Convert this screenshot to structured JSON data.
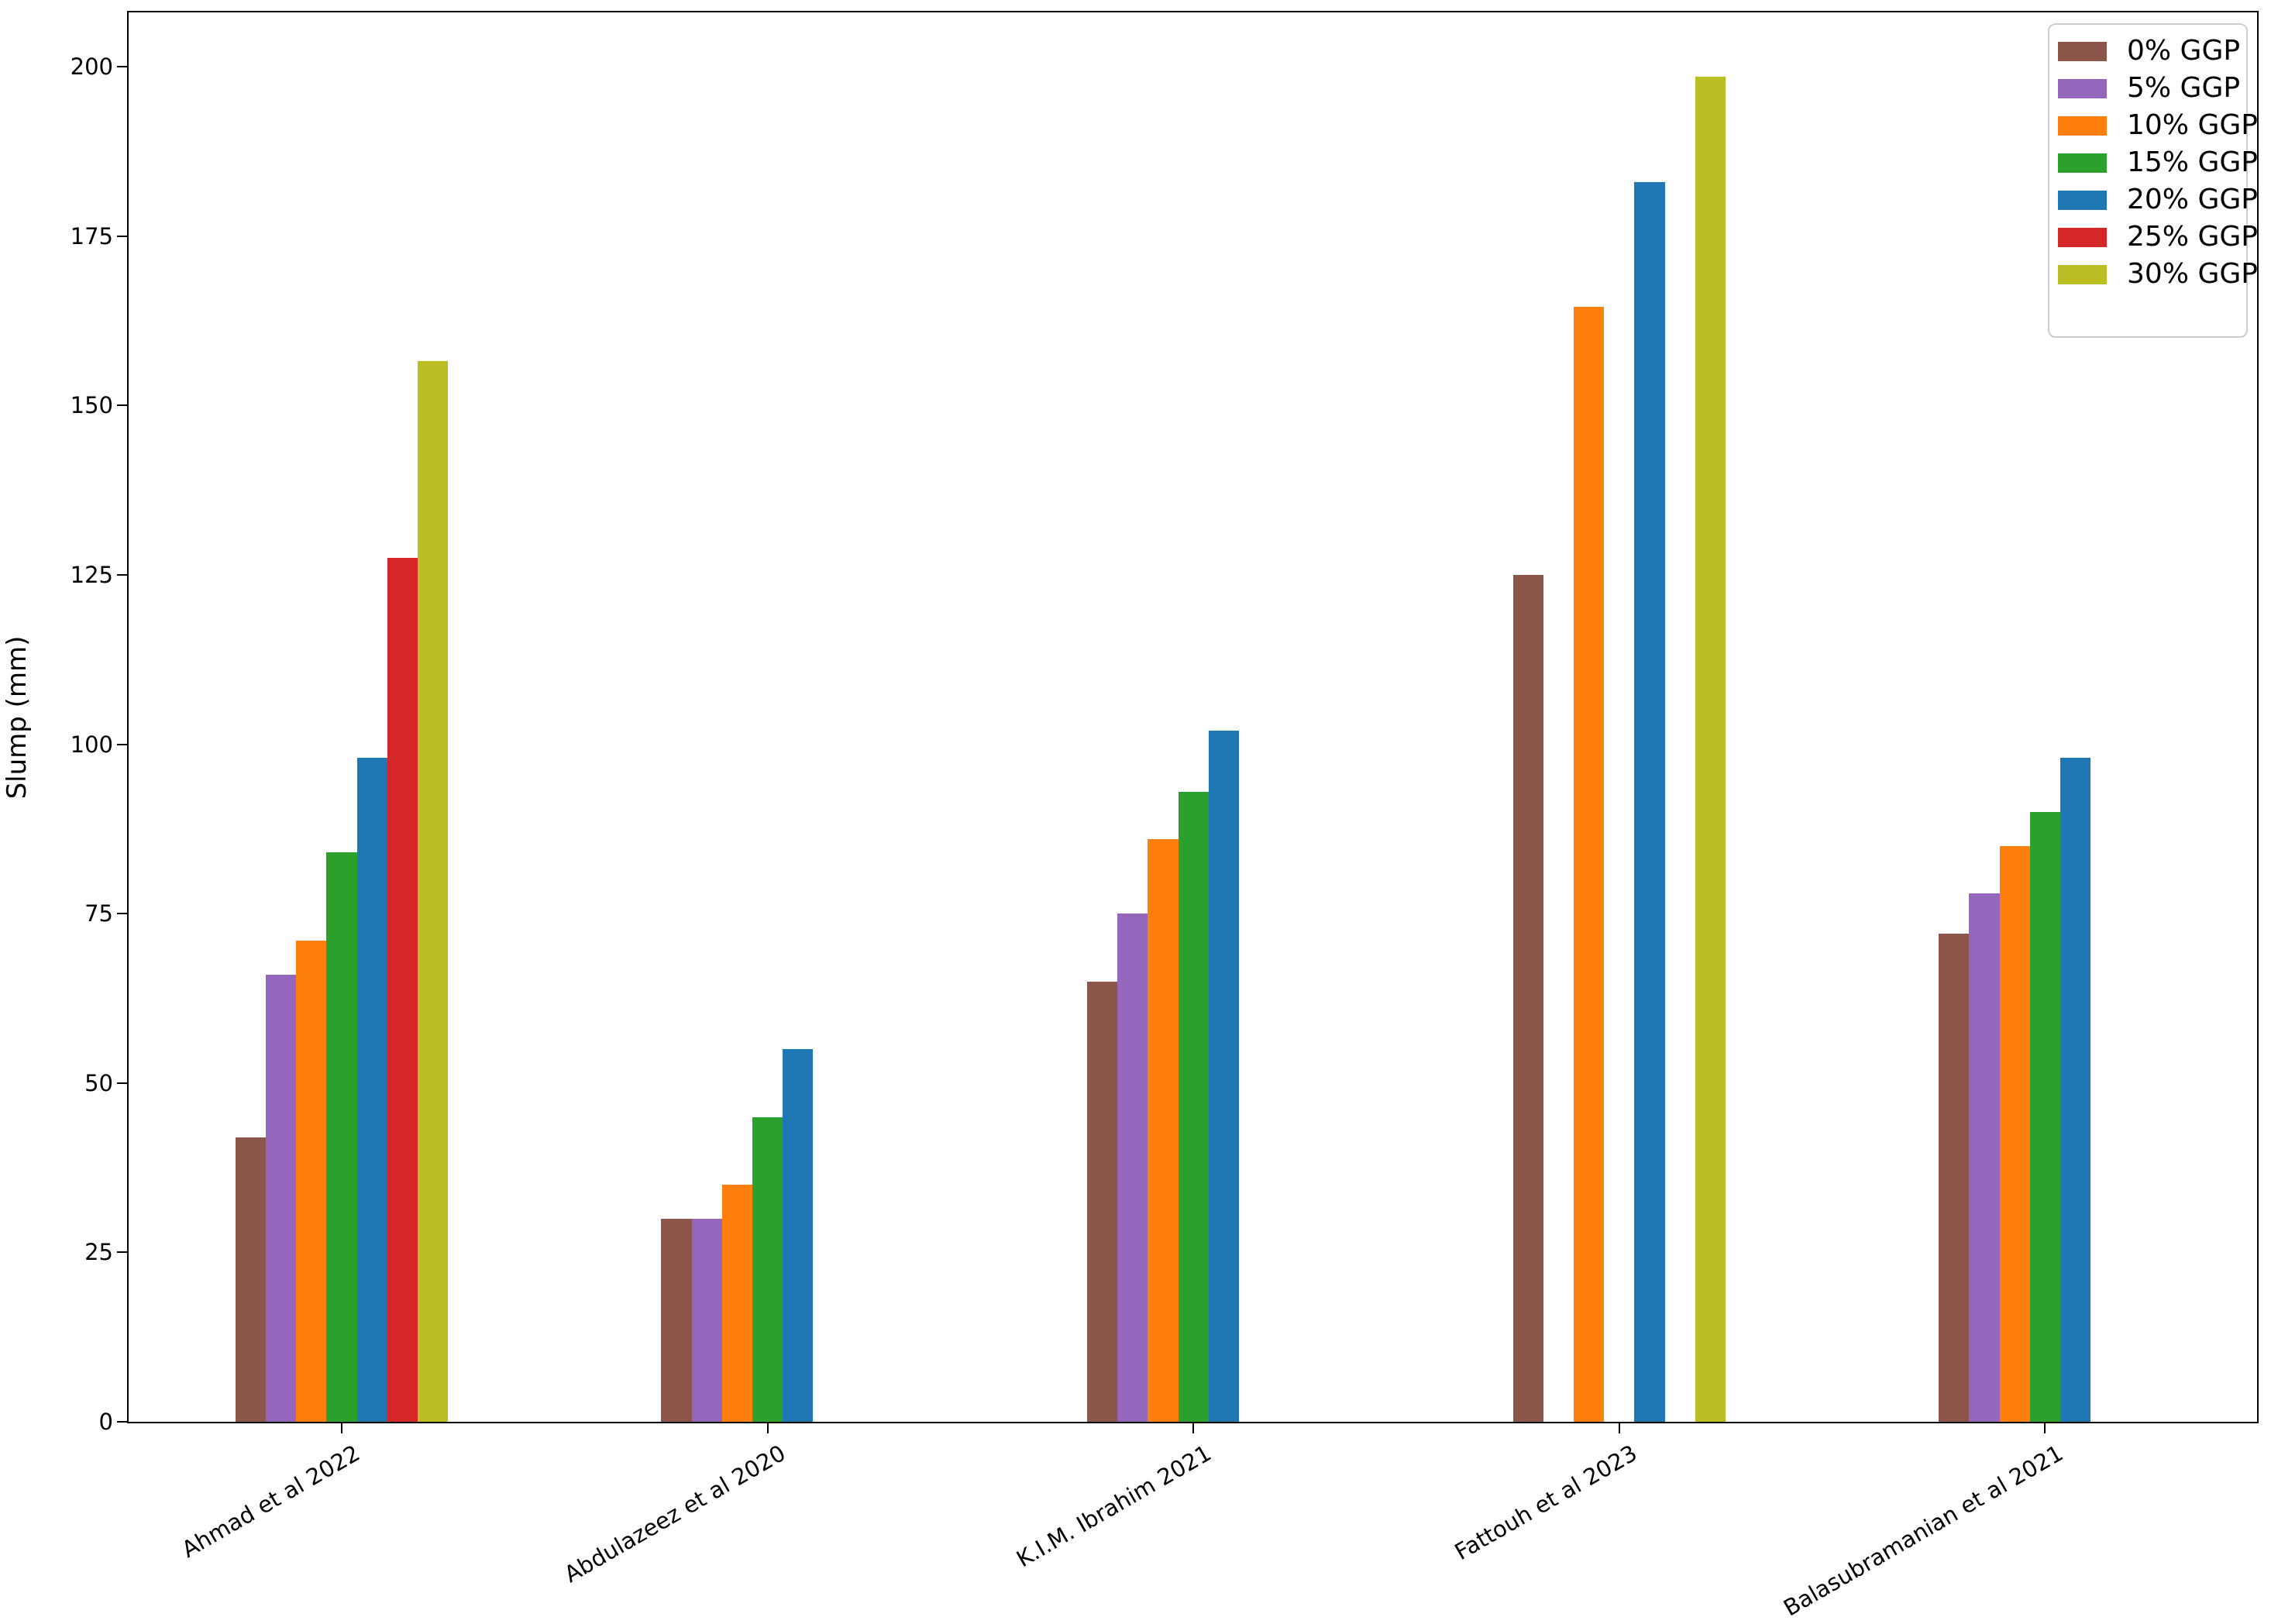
{
  "figure": {
    "background": "#ffffff",
    "spine_color": "#000000",
    "tick_color": "#000000",
    "legend_border_color": "#cccccc"
  },
  "chart_data": {
    "type": "bar",
    "title": "",
    "xlabel": "",
    "ylabel": "Slump (mm)",
    "categories": [
      "Ahmad et al 2022",
      "Abdulazeez et al 2020",
      "K.I.M. Ibrahim 2021",
      "Fattouh et al 2023",
      "Balasubramanian et al 2021"
    ],
    "series": [
      {
        "name": "0% GGP",
        "color": "#8c564b",
        "values": [
          42,
          30,
          65,
          125,
          72
        ]
      },
      {
        "name": "5% GGP",
        "color": "#9467bd",
        "values": [
          66,
          30,
          75,
          null,
          78
        ]
      },
      {
        "name": "10% GGP",
        "color": "#ff7f0e",
        "values": [
          71,
          35,
          86,
          164.5,
          85
        ]
      },
      {
        "name": "15% GGP",
        "color": "#2ca02c",
        "values": [
          84,
          45,
          93,
          null,
          90
        ]
      },
      {
        "name": "20% GGP",
        "color": "#1f77b4",
        "values": [
          98,
          55,
          102,
          183,
          98
        ]
      },
      {
        "name": "25% GGP",
        "color": "#d62728",
        "values": [
          127.5,
          null,
          null,
          null,
          null
        ]
      },
      {
        "name": "30% GGP",
        "color": "#bcbd22",
        "values": [
          156.5,
          null,
          null,
          198.5,
          null
        ]
      }
    ],
    "ylim": [
      0,
      208
    ],
    "yticks": [
      0,
      25,
      50,
      75,
      100,
      125,
      150,
      175,
      200
    ],
    "grid": false,
    "legend_position": "upper right",
    "x_tick_rotation_deg": 30
  }
}
